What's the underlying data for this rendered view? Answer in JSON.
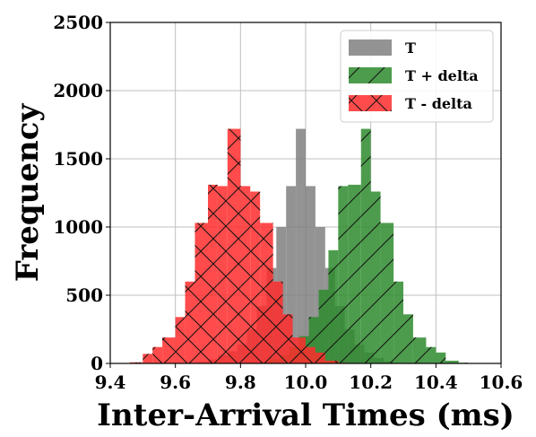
{
  "chart_data": {
    "type": "bar",
    "title": "",
    "xlabel": "Inter-Arrival Times (ms)",
    "ylabel": "Frequency",
    "xlim": [
      9.4,
      10.6
    ],
    "ylim": [
      0,
      2500
    ],
    "xticks": [
      "9.4",
      "9.6",
      "9.8",
      "10.0",
      "10.2",
      "10.4",
      "10.6"
    ],
    "yticks": [
      "0",
      "500",
      "1000",
      "1500",
      "2000",
      "2500"
    ],
    "grid": true,
    "legend_position": "top-right",
    "series": [
      {
        "name": "T",
        "color": "#808080",
        "hatch": "none",
        "bins": [
          {
            "x0": 9.67,
            "x1": 9.7,
            "y": 10
          },
          {
            "x0": 9.7,
            "x1": 9.73,
            "y": 30
          },
          {
            "x0": 9.73,
            "x1": 9.76,
            "y": 60
          },
          {
            "x0": 9.76,
            "x1": 9.79,
            "y": 90
          },
          {
            "x0": 9.79,
            "x1": 9.82,
            "y": 140
          },
          {
            "x0": 9.82,
            "x1": 9.85,
            "y": 250
          },
          {
            "x0": 9.85,
            "x1": 9.88,
            "y": 420
          },
          {
            "x0": 9.88,
            "x1": 9.91,
            "y": 700
          },
          {
            "x0": 9.91,
            "x1": 9.94,
            "y": 1000
          },
          {
            "x0": 9.94,
            "x1": 9.97,
            "y": 1300
          },
          {
            "x0": 9.97,
            "x1": 10.0,
            "y": 1720
          },
          {
            "x0": 10.0,
            "x1": 10.03,
            "y": 1300
          },
          {
            "x0": 10.03,
            "x1": 10.06,
            "y": 1000
          },
          {
            "x0": 10.06,
            "x1": 10.09,
            "y": 700
          },
          {
            "x0": 10.09,
            "x1": 10.12,
            "y": 420
          },
          {
            "x0": 10.12,
            "x1": 10.15,
            "y": 250
          },
          {
            "x0": 10.15,
            "x1": 10.18,
            "y": 140
          },
          {
            "x0": 10.18,
            "x1": 10.21,
            "y": 80
          },
          {
            "x0": 10.21,
            "x1": 10.24,
            "y": 40
          },
          {
            "x0": 10.24,
            "x1": 10.27,
            "y": 15
          }
        ]
      },
      {
        "name": "T + delta",
        "color": "#2e8b2e",
        "hatch": "diag",
        "bins": [
          {
            "x0": 9.86,
            "x1": 9.89,
            "y": 10
          },
          {
            "x0": 9.89,
            "x1": 9.92,
            "y": 30
          },
          {
            "x0": 9.92,
            "x1": 9.95,
            "y": 60
          },
          {
            "x0": 9.95,
            "x1": 9.98,
            "y": 120
          },
          {
            "x0": 9.98,
            "x1": 10.01,
            "y": 200
          },
          {
            "x0": 10.01,
            "x1": 10.04,
            "y": 340
          },
          {
            "x0": 10.04,
            "x1": 10.07,
            "y": 540
          },
          {
            "x0": 10.07,
            "x1": 10.1,
            "y": 830
          },
          {
            "x0": 10.1,
            "x1": 10.13,
            "y": 1300
          },
          {
            "x0": 10.13,
            "x1": 10.17,
            "y": 1310
          },
          {
            "x0": 10.17,
            "x1": 10.2,
            "y": 1720
          },
          {
            "x0": 10.2,
            "x1": 10.23,
            "y": 1260
          },
          {
            "x0": 10.23,
            "x1": 10.27,
            "y": 1030
          },
          {
            "x0": 10.27,
            "x1": 10.3,
            "y": 600
          },
          {
            "x0": 10.3,
            "x1": 10.33,
            "y": 360
          },
          {
            "x0": 10.33,
            "x1": 10.37,
            "y": 190
          },
          {
            "x0": 10.37,
            "x1": 10.4,
            "y": 120
          },
          {
            "x0": 10.4,
            "x1": 10.43,
            "y": 80
          },
          {
            "x0": 10.43,
            "x1": 10.47,
            "y": 20
          },
          {
            "x0": 10.47,
            "x1": 10.5,
            "y": 5
          }
        ]
      },
      {
        "name": "T - delta",
        "color": "#ff2b2b",
        "hatch": "cross",
        "bins": [
          {
            "x0": 9.46,
            "x1": 9.5,
            "y": 8
          },
          {
            "x0": 9.5,
            "x1": 9.53,
            "y": 70
          },
          {
            "x0": 9.53,
            "x1": 9.56,
            "y": 120
          },
          {
            "x0": 9.56,
            "x1": 9.6,
            "y": 190
          },
          {
            "x0": 9.6,
            "x1": 9.63,
            "y": 340
          },
          {
            "x0": 9.63,
            "x1": 9.66,
            "y": 600
          },
          {
            "x0": 9.66,
            "x1": 9.7,
            "y": 1030
          },
          {
            "x0": 9.7,
            "x1": 9.73,
            "y": 1310
          },
          {
            "x0": 9.73,
            "x1": 9.76,
            "y": 1300
          },
          {
            "x0": 9.76,
            "x1": 9.8,
            "y": 1720
          },
          {
            "x0": 9.8,
            "x1": 9.83,
            "y": 1300
          },
          {
            "x0": 9.83,
            "x1": 9.86,
            "y": 1260
          },
          {
            "x0": 9.86,
            "x1": 9.9,
            "y": 1030
          },
          {
            "x0": 9.9,
            "x1": 9.93,
            "y": 600
          },
          {
            "x0": 9.93,
            "x1": 9.96,
            "y": 360
          },
          {
            "x0": 9.96,
            "x1": 10.0,
            "y": 190
          },
          {
            "x0": 10.0,
            "x1": 10.03,
            "y": 120
          },
          {
            "x0": 10.03,
            "x1": 10.06,
            "y": 80
          },
          {
            "x0": 10.06,
            "x1": 10.1,
            "y": 20
          },
          {
            "x0": 10.1,
            "x1": 10.13,
            "y": 5
          }
        ]
      }
    ]
  }
}
